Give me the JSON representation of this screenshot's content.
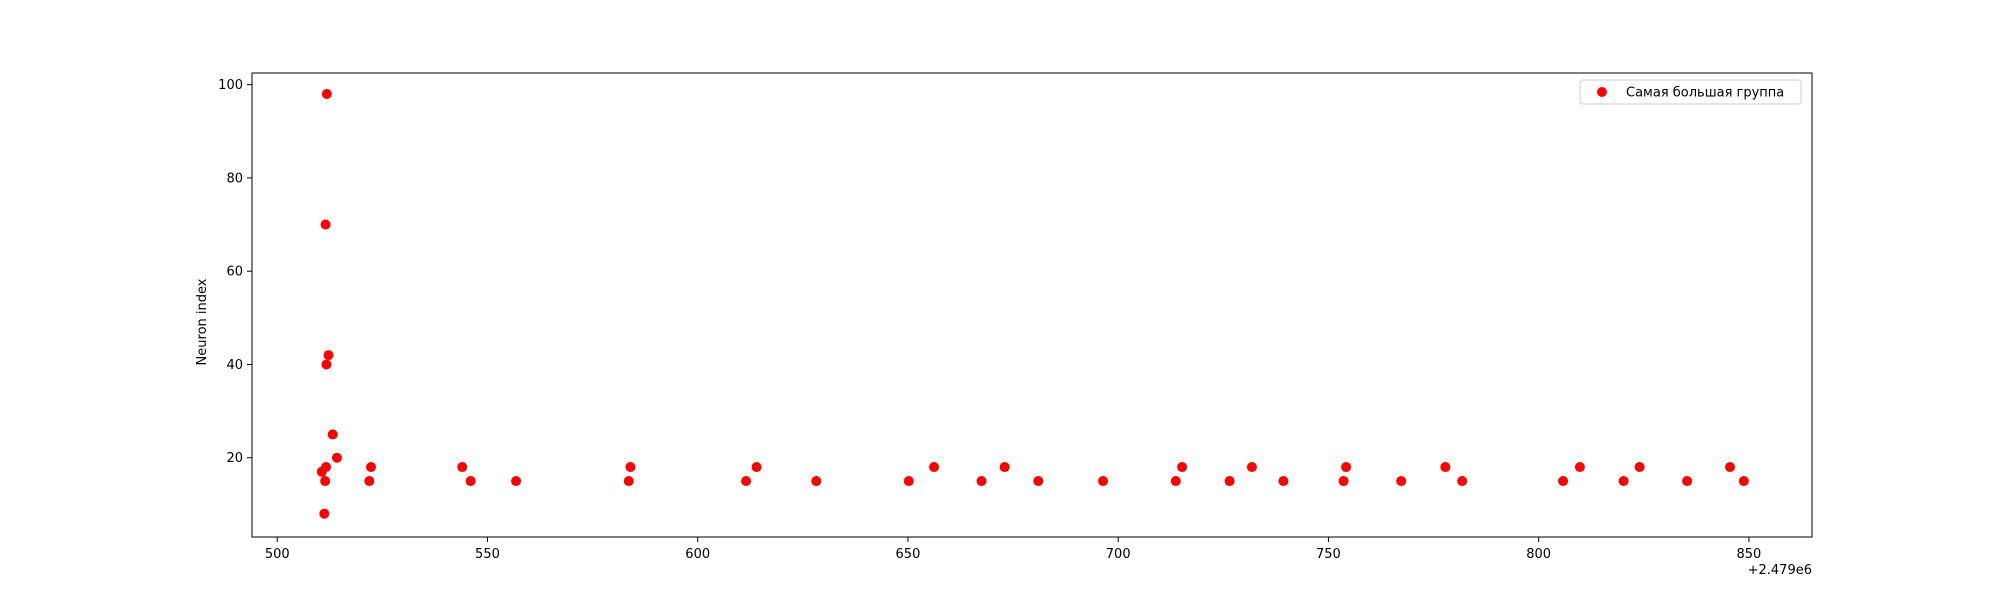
{
  "chart_data": {
    "type": "scatter",
    "title": "",
    "xlabel": "",
    "ylabel": "Neuron index",
    "x_offset_label": "+2.479e6",
    "xlim": [
      494,
      865
    ],
    "ylim": [
      3,
      102.5
    ],
    "x_ticks": [
      500,
      550,
      600,
      650,
      700,
      750,
      800,
      850
    ],
    "y_ticks": [
      20,
      40,
      60,
      80,
      100
    ],
    "grid": false,
    "legend_position": "top-right",
    "series": [
      {
        "name": "Самая большая группа",
        "color": "#ff0000",
        "points": [
          [
            511.8,
            98
          ],
          [
            511.5,
            70
          ],
          [
            512.2,
            42
          ],
          [
            511.7,
            40
          ],
          [
            513.2,
            25
          ],
          [
            514.2,
            20
          ],
          [
            510.6,
            17
          ],
          [
            511.6,
            18
          ],
          [
            511.4,
            15
          ],
          [
            511.2,
            8
          ],
          [
            521.9,
            15
          ],
          [
            522.3,
            18
          ],
          [
            544.0,
            18
          ],
          [
            546.0,
            15
          ],
          [
            556.8,
            15
          ],
          [
            583.6,
            15
          ],
          [
            584.0,
            18
          ],
          [
            611.5,
            15
          ],
          [
            614.0,
            18
          ],
          [
            628.2,
            15
          ],
          [
            650.2,
            15
          ],
          [
            656.2,
            18
          ],
          [
            667.5,
            15
          ],
          [
            673.0,
            18
          ],
          [
            681.0,
            15
          ],
          [
            696.4,
            15
          ],
          [
            713.7,
            15
          ],
          [
            715.2,
            18
          ],
          [
            726.5,
            15
          ],
          [
            731.8,
            18
          ],
          [
            739.3,
            15
          ],
          [
            753.6,
            15
          ],
          [
            754.2,
            18
          ],
          [
            767.3,
            15
          ],
          [
            777.8,
            18
          ],
          [
            781.8,
            15
          ],
          [
            805.8,
            15
          ],
          [
            809.8,
            18
          ],
          [
            820.2,
            15
          ],
          [
            824.0,
            18
          ],
          [
            835.3,
            15
          ],
          [
            845.5,
            18
          ],
          [
            848.8,
            15
          ]
        ]
      }
    ]
  }
}
